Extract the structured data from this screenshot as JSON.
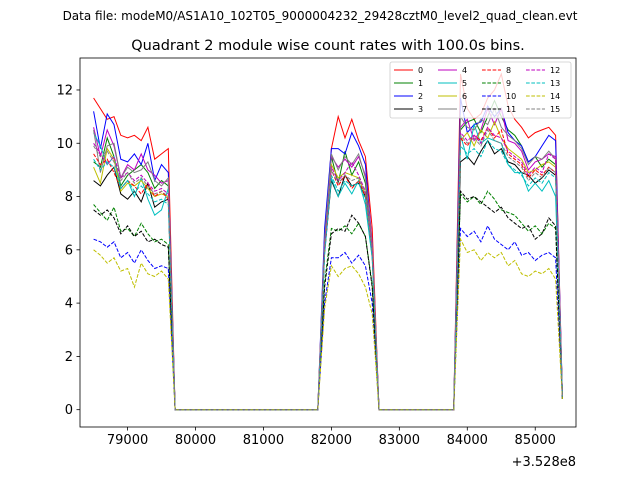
{
  "chart_data": {
    "type": "line",
    "suptitle": "Data file: modeM0/AS1A10_102T05_9000004232_29428cztM0_level2_quad_clean.evt",
    "title": "Quadrant 2 module wise count rates with 100.0s bins.",
    "xlabel": "",
    "ylabel": "",
    "offset_label": "+3.528e8",
    "xlim": [
      78300,
      85600
    ],
    "ylim": [
      -0.65,
      13.2
    ],
    "x_ticks": [
      79000,
      80000,
      81000,
      82000,
      83000,
      84000,
      85000
    ],
    "x_tick_labels": [
      "79000",
      "80000",
      "81000",
      "82000",
      "83000",
      "84000",
      "85000"
    ],
    "y_ticks": [
      0,
      2,
      4,
      6,
      8,
      10,
      12
    ],
    "y_tick_labels": [
      "0",
      "2",
      "4",
      "6",
      "8",
      "10",
      "12"
    ],
    "legend_position": "top-right",
    "legend_columns": 4,
    "x": [
      78500,
      78600,
      78700,
      78800,
      78900,
      79000,
      79100,
      79200,
      79300,
      79400,
      79500,
      79600,
      79700,
      79800,
      81700,
      81800,
      81900,
      82000,
      82100,
      82200,
      82300,
      82400,
      82500,
      82600,
      82700,
      82800,
      83700,
      83800,
      83900,
      84000,
      84100,
      84200,
      84300,
      84400,
      84500,
      84600,
      84700,
      84800,
      84900,
      85000,
      85100,
      85200,
      85300,
      85400
    ],
    "series": [
      {
        "name": "0",
        "color": "#ff0000",
        "dash": "solid",
        "values": [
          11.7,
          11.3,
          10.9,
          11.0,
          10.3,
          10.2,
          10.3,
          10.1,
          10.6,
          9.4,
          9.6,
          9.8,
          0,
          0,
          0,
          0,
          6.5,
          9.8,
          11.0,
          10.2,
          10.9,
          10.1,
          9.5,
          6.8,
          0,
          0,
          0,
          0,
          12.6,
          11.3,
          10.9,
          11.1,
          11.7,
          12.0,
          12.6,
          11.4,
          10.9,
          10.6,
          10.2,
          10.4,
          10.5,
          10.6,
          10.3,
          0.5
        ]
      },
      {
        "name": "1",
        "color": "#008000",
        "dash": "solid",
        "values": [
          9.3,
          9.1,
          10.2,
          9.5,
          8.4,
          8.8,
          9.0,
          9.2,
          8.9,
          8.3,
          8.6,
          8.4,
          0,
          0,
          0,
          0,
          6.0,
          9.5,
          8.5,
          9.7,
          8.8,
          9.3,
          8.5,
          6.0,
          0,
          0,
          0,
          0,
          10.5,
          10.8,
          10.9,
          10.4,
          11.0,
          11.6,
          11.0,
          10.5,
          10.3,
          9.9,
          9.3,
          9.5,
          9.1,
          9.4,
          9.2,
          0.5
        ]
      },
      {
        "name": "2",
        "color": "#0000ff",
        "dash": "solid",
        "values": [
          11.2,
          9.8,
          11.1,
          10.7,
          9.4,
          9.3,
          9.6,
          9.2,
          10.0,
          8.6,
          9.2,
          8.9,
          0,
          0,
          0,
          0,
          6.8,
          9.8,
          9.8,
          9.6,
          10.4,
          9.9,
          9.2,
          6.2,
          0,
          0,
          0,
          0,
          11.7,
          10.4,
          10.7,
          10.8,
          11.4,
          11.0,
          11.3,
          10.4,
          10.1,
          9.9,
          9.3,
          9.5,
          9.9,
          10.3,
          10.1,
          0.5
        ]
      },
      {
        "name": "3",
        "color": "#000000",
        "dash": "solid",
        "values": [
          8.6,
          8.4,
          8.8,
          9.1,
          8.1,
          7.9,
          8.2,
          7.8,
          8.5,
          7.6,
          7.8,
          7.9,
          0,
          0,
          0,
          0,
          5.9,
          8.6,
          8.0,
          8.8,
          8.4,
          8.5,
          8.0,
          5.8,
          0,
          0,
          0,
          0,
          9.3,
          9.5,
          9.2,
          9.7,
          10.1,
          9.6,
          9.8,
          9.3,
          9.2,
          8.9,
          8.8,
          8.5,
          8.7,
          9.0,
          8.8,
          0.5
        ]
      },
      {
        "name": "4",
        "color": "#bf00bf",
        "dash": "solid",
        "values": [
          10.6,
          9.5,
          10.5,
          9.9,
          8.7,
          9.2,
          9.0,
          9.6,
          9.0,
          8.8,
          8.5,
          8.6,
          0,
          0,
          0,
          0,
          6.2,
          9.5,
          9.1,
          9.4,
          9.1,
          9.5,
          8.8,
          6.3,
          0,
          0,
          0,
          0,
          10.6,
          10.9,
          10.1,
          10.5,
          11.3,
          10.7,
          11.3,
          10.1,
          10.0,
          9.7,
          9.0,
          9.3,
          9.4,
          9.6,
          9.5,
          0.5
        ]
      },
      {
        "name": "5",
        "color": "#00bfbf",
        "dash": "solid",
        "values": [
          10.4,
          9.9,
          9.2,
          9.5,
          8.3,
          8.6,
          8.0,
          8.7,
          7.9,
          7.3,
          7.5,
          8.3,
          0,
          0,
          0,
          0,
          6.0,
          8.7,
          8.0,
          8.5,
          8.1,
          8.6,
          7.7,
          5.7,
          0,
          0,
          0,
          0,
          10.3,
          9.4,
          10.7,
          10.0,
          10.2,
          10.1,
          10.0,
          9.2,
          8.9,
          8.9,
          8.2,
          8.5,
          8.2,
          8.6,
          8.0,
          0.5
        ]
      },
      {
        "name": "6",
        "color": "#bfbf00",
        "dash": "solid",
        "values": [
          9.1,
          8.5,
          9.8,
          9.4,
          8.2,
          8.5,
          8.4,
          8.6,
          8.3,
          8.0,
          8.1,
          8.0,
          0,
          0,
          0,
          0,
          6.1,
          9.2,
          8.7,
          8.9,
          8.8,
          8.7,
          8.1,
          6.1,
          0,
          0,
          0,
          0,
          10.1,
          10.4,
          9.9,
          10.5,
          10.2,
          10.8,
          10.2,
          9.8,
          9.6,
          9.4,
          8.9,
          9.0,
          9.2,
          9.3,
          9.1,
          0.5
        ]
      },
      {
        "name": "7",
        "color": "#808080",
        "dash": "solid",
        "values": [
          10.5,
          8.9,
          9.9,
          10.0,
          8.7,
          9.1,
          8.9,
          9.0,
          9.3,
          8.6,
          8.4,
          8.7,
          0,
          0,
          0,
          0,
          6.4,
          9.6,
          9.0,
          9.5,
          9.2,
          9.6,
          8.7,
          6.2,
          0,
          0,
          0,
          0,
          11.0,
          10.6,
          10.5,
          10.9,
          10.7,
          11.3,
          10.6,
          10.3,
          10.1,
          9.8,
          9.2,
          9.5,
          9.4,
          9.7,
          9.4,
          0.5
        ]
      },
      {
        "name": "8",
        "color": "#ff0000",
        "dash": "dashed",
        "values": [
          9.6,
          9.2,
          9.4,
          8.9,
          8.3,
          8.6,
          8.4,
          8.1,
          8.5,
          8.0,
          8.2,
          7.9,
          0,
          0,
          0,
          0,
          6.0,
          9.0,
          8.4,
          8.8,
          8.3,
          8.6,
          8.0,
          5.9,
          0,
          0,
          0,
          0,
          10.2,
          9.9,
          10.3,
          10.1,
          10.6,
          10.2,
          10.5,
          9.6,
          9.4,
          9.2,
          8.7,
          9.0,
          8.8,
          9.1,
          8.9,
          0.5
        ]
      },
      {
        "name": "9",
        "color": "#008000",
        "dash": "dashed",
        "values": [
          7.7,
          7.4,
          7.1,
          7.6,
          6.7,
          6.8,
          6.5,
          7.0,
          6.6,
          6.3,
          6.4,
          6.2,
          0,
          0,
          0,
          0,
          4.8,
          6.8,
          6.7,
          6.9,
          6.6,
          7.0,
          6.5,
          4.7,
          0,
          0,
          0,
          0,
          8.1,
          7.8,
          8.0,
          7.7,
          8.2,
          7.9,
          7.5,
          7.4,
          7.3,
          7.0,
          6.7,
          6.9,
          6.6,
          7.0,
          6.8,
          0.4
        ]
      },
      {
        "name": "10",
        "color": "#0000ff",
        "dash": "dashed",
        "values": [
          6.4,
          6.3,
          6.1,
          6.3,
          5.7,
          5.9,
          5.5,
          6.0,
          5.6,
          5.3,
          5.4,
          5.3,
          0,
          0,
          0,
          0,
          4.0,
          5.7,
          5.7,
          5.9,
          5.5,
          5.8,
          5.4,
          4.0,
          0,
          0,
          0,
          0,
          6.8,
          6.5,
          6.7,
          6.3,
          6.9,
          6.4,
          6.2,
          6.0,
          6.3,
          5.8,
          5.9,
          5.6,
          5.8,
          5.9,
          5.7,
          0.4
        ]
      },
      {
        "name": "11",
        "color": "#000000",
        "dash": "dashed",
        "values": [
          7.5,
          7.3,
          7.5,
          7.2,
          6.6,
          6.9,
          6.5,
          6.7,
          6.3,
          6.4,
          6.2,
          6.1,
          0,
          0,
          0,
          0,
          4.6,
          6.6,
          6.8,
          6.7,
          7.3,
          7.0,
          6.5,
          4.6,
          0,
          0,
          0,
          0,
          8.2,
          7.9,
          8.0,
          7.8,
          7.6,
          7.4,
          7.6,
          7.2,
          7.0,
          6.8,
          6.9,
          6.4,
          6.6,
          7.2,
          6.9,
          0.4
        ]
      },
      {
        "name": "12",
        "color": "#bf00bf",
        "dash": "dashed",
        "values": [
          10.0,
          9.6,
          9.2,
          9.5,
          8.7,
          8.9,
          8.6,
          8.8,
          8.5,
          8.2,
          8.3,
          8.1,
          0,
          0,
          0,
          0,
          6.1,
          9.1,
          8.6,
          8.9,
          9.3,
          8.8,
          8.2,
          6.0,
          0,
          0,
          0,
          0,
          10.4,
          10.1,
          10.3,
          10.0,
          10.6,
          10.3,
          10.2,
          9.7,
          9.5,
          9.3,
          8.8,
          9.1,
          8.9,
          9.6,
          9.4,
          0.5
        ]
      },
      {
        "name": "13",
        "color": "#00bfbf",
        "dash": "dashed",
        "values": [
          9.4,
          9.0,
          9.3,
          9.1,
          8.3,
          8.6,
          8.2,
          8.4,
          8.1,
          7.8,
          7.9,
          7.7,
          0,
          0,
          0,
          0,
          5.8,
          8.8,
          8.2,
          8.6,
          8.4,
          8.5,
          7.9,
          5.7,
          0,
          0,
          0,
          0,
          9.9,
          9.6,
          9.8,
          9.5,
          10.1,
          9.8,
          9.7,
          9.2,
          9.0,
          8.8,
          8.4,
          8.7,
          8.5,
          8.9,
          8.7,
          0.5
        ]
      },
      {
        "name": "14",
        "color": "#bfbf00",
        "dash": "dashed",
        "values": [
          6.0,
          5.8,
          5.5,
          5.7,
          5.2,
          5.3,
          4.6,
          5.5,
          5.1,
          5.0,
          5.2,
          4.9,
          0,
          0,
          0,
          0,
          3.8,
          5.4,
          5.0,
          5.3,
          5.4,
          5.1,
          4.6,
          3.6,
          0,
          0,
          0,
          0,
          6.4,
          5.9,
          6.0,
          5.6,
          5.9,
          5.7,
          5.9,
          5.4,
          5.6,
          5.1,
          5.0,
          5.2,
          5.1,
          5.3,
          4.9,
          0.4
        ]
      },
      {
        "name": "15",
        "color": "#808080",
        "dash": "dashed",
        "values": [
          9.9,
          9.5,
          9.7,
          9.3,
          8.6,
          8.9,
          8.5,
          8.7,
          8.4,
          8.1,
          8.2,
          8.0,
          0,
          0,
          0,
          0,
          6.0,
          9.0,
          8.5,
          8.8,
          8.6,
          8.7,
          8.1,
          5.9,
          0,
          0,
          0,
          0,
          10.3,
          10.0,
          10.2,
          9.9,
          10.5,
          10.1,
          10.0,
          9.5,
          9.3,
          9.1,
          8.6,
          8.9,
          8.7,
          9.1,
          8.9,
          0.5
        ]
      }
    ]
  }
}
